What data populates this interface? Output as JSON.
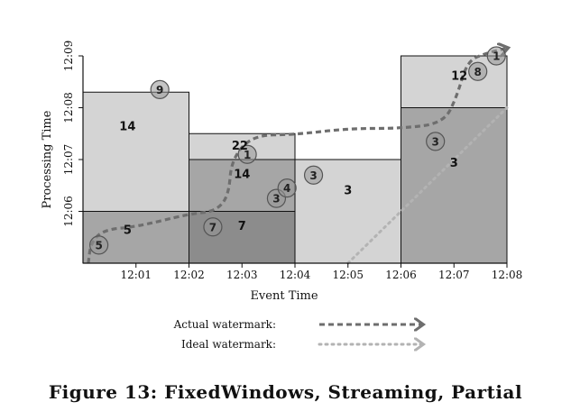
{
  "chart_data": {
    "type": "scatter",
    "xlabel": "Event Time",
    "ylabel": "Processing Time",
    "x_ticks": [
      "12:01",
      "12:02",
      "12:03",
      "12:04",
      "12:05",
      "12:06",
      "12:07",
      "12:08"
    ],
    "y_ticks": [
      "12:06",
      "12:07",
      "12:08",
      "12:09"
    ],
    "xlim": [
      "12:00",
      "12:08"
    ],
    "ylim": [
      "12:05",
      "12:09"
    ],
    "windows": [
      {
        "start": "12:00",
        "end": "12:02",
        "panes": [
          {
            "from": "12:05",
            "to": "12:06",
            "sum": "5",
            "shade": "#a6a6a6"
          },
          {
            "from": "12:06",
            "to": "12:08.3",
            "sum": "14",
            "shade": "#d4d4d4"
          }
        ]
      },
      {
        "start": "12:02",
        "end": "12:04",
        "panes": [
          {
            "from": "12:05",
            "to": "12:06",
            "sum": "7",
            "shade": "#8c8c8c"
          },
          {
            "from": "12:06",
            "to": "12:07",
            "sum": "14",
            "shade": "#a6a6a6"
          },
          {
            "from": "12:07",
            "to": "12:07.5",
            "sum": "22",
            "shade": "#d4d4d4"
          }
        ]
      },
      {
        "start": "12:04",
        "end": "12:06",
        "panes": [
          {
            "from": "12:05",
            "to": "12:07",
            "sum": "3",
            "shade": "#d4d4d4"
          }
        ]
      },
      {
        "start": "12:06",
        "end": "12:08",
        "panes": [
          {
            "from": "12:05",
            "to": "12:08",
            "sum": "3",
            "shade": "#a6a6a6"
          },
          {
            "from": "12:08",
            "to": "12:09",
            "sum": "12",
            "shade": "#d4d4d4"
          }
        ]
      }
    ],
    "points": [
      {
        "event": "12:00.3",
        "processing": "12:05.35",
        "value": "5"
      },
      {
        "event": "12:01.45",
        "processing": "12:08.35",
        "value": "9"
      },
      {
        "event": "12:02.45",
        "processing": "12:05.7",
        "value": "7"
      },
      {
        "event": "12:03.1",
        "processing": "12:07.1",
        "value": "1"
      },
      {
        "event": "12:03.65",
        "processing": "12:06.25",
        "value": "3"
      },
      {
        "event": "12:03.85",
        "processing": "12:06.45",
        "value": "4"
      },
      {
        "event": "12:04.35",
        "processing": "12:06.7",
        "value": "3"
      },
      {
        "event": "12:06.65",
        "processing": "12:07.35",
        "value": "3"
      },
      {
        "event": "12:07.45",
        "processing": "12:08.7",
        "value": "8"
      },
      {
        "event": "12:07.8",
        "processing": "12:09",
        "value": "1"
      }
    ],
    "actual_watermark": [
      [
        "12:00.1",
        "12:05"
      ],
      [
        "12:00.15",
        "12:05.4"
      ],
      [
        "12:00.4",
        "12:05.65"
      ],
      [
        "12:01",
        "12:05.7"
      ],
      [
        "12:02",
        "12:05.95"
      ],
      [
        "12:02.5",
        "12:06"
      ],
      [
        "12:02.75",
        "12:06.3"
      ],
      [
        "12:02.8",
        "12:07"
      ],
      [
        "12:03.2",
        "12:07.47"
      ],
      [
        "12:04",
        "12:07.48"
      ],
      [
        "12:05",
        "12:07.6"
      ],
      [
        "12:06",
        "12:07.6"
      ],
      [
        "12:06.8",
        "12:07.7"
      ],
      [
        "12:07.05",
        "12:08.2"
      ],
      [
        "12:07.25",
        "12:08.9"
      ],
      [
        "12:07.6",
        "12:09.05"
      ],
      [
        "12:08",
        "12:09.15"
      ]
    ],
    "ideal_watermark": [
      [
        "12:05",
        "12:05"
      ],
      [
        "12:08",
        "12:08"
      ]
    ],
    "legend": [
      {
        "label": "Actual watermark:",
        "style": "dashed",
        "color": "#6e6e6e"
      },
      {
        "label": "Ideal watermark:",
        "style": "dotted",
        "color": "#b3b3b3"
      }
    ],
    "grid": false,
    "legend_position": "bottom-center"
  },
  "caption": "Figure 13: FixedWindows, Streaming, Partial"
}
